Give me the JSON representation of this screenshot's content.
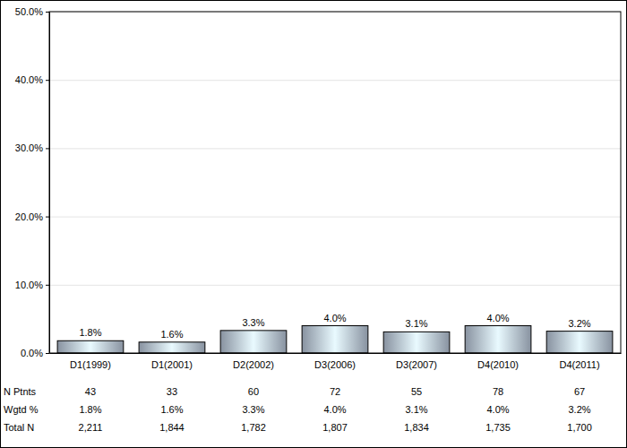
{
  "chart_data": {
    "type": "bar",
    "categories": [
      "D1(1999)",
      "D1(2001)",
      "D2(2002)",
      "D3(2006)",
      "D3(2007)",
      "D4(2010)",
      "D4(2011)"
    ],
    "values": [
      1.8,
      1.6,
      3.3,
      4.0,
      3.1,
      4.0,
      3.2
    ],
    "value_labels": [
      "1.8%",
      "1.6%",
      "3.3%",
      "4.0%",
      "3.1%",
      "4.0%",
      "3.2%"
    ],
    "color": "#a9b5c6",
    "ylim": [
      0,
      50
    ],
    "yticks": [
      {
        "value": 0,
        "label": "0.0%"
      },
      {
        "value": 10,
        "label": "10.0%"
      },
      {
        "value": 20,
        "label": "20.0%"
      },
      {
        "value": 30,
        "label": "30.0%"
      },
      {
        "value": 40,
        "label": "40.0%"
      },
      {
        "value": 50,
        "label": "50.0%"
      }
    ],
    "grid": true,
    "data_labels": true,
    "table": {
      "rows": [
        {
          "label": "N Ptnts",
          "values": [
            "43",
            "33",
            "60",
            "72",
            "55",
            "78",
            "67"
          ]
        },
        {
          "label": "Wgtd %",
          "values": [
            "1.8%",
            "1.6%",
            "3.3%",
            "4.0%",
            "3.1%",
            "4.0%",
            "3.2%"
          ]
        },
        {
          "label": "Total N",
          "values": [
            "2,211",
            "1,844",
            "1,782",
            "1,807",
            "1,834",
            "1,735",
            "1,700"
          ]
        }
      ]
    }
  }
}
